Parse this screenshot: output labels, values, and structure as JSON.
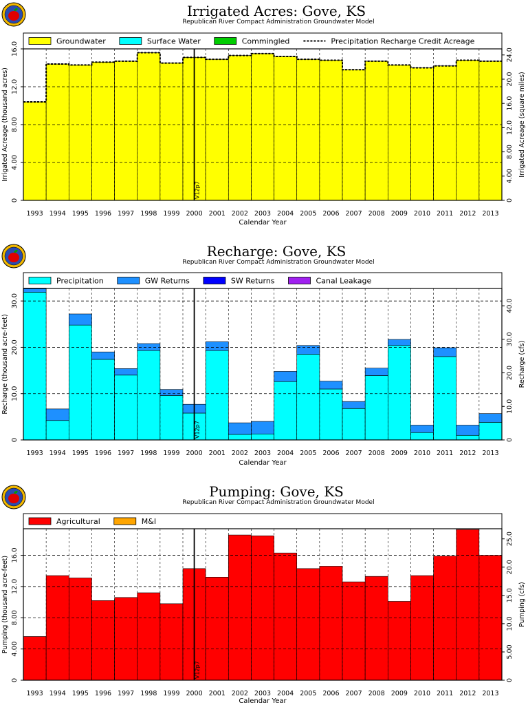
{
  "chart_data": [
    {
      "type": "bar",
      "title": "Irrigated Acres: Gove, KS",
      "subtitle": "Republican River Compact Administration Groundwater Model",
      "xlabel": "Calendar Year",
      "ylabel": "Irrigated Acreage (thousand acres)",
      "y2label": "Irrigated Acreage (square miles)",
      "categories": [
        "1993",
        "1994",
        "1995",
        "1996",
        "1997",
        "1998",
        "1999",
        "2000",
        "2001",
        "2002",
        "2003",
        "2004",
        "2005",
        "2006",
        "2007",
        "2008",
        "2009",
        "2010",
        "2011",
        "2012",
        "2013"
      ],
      "ylim": [
        0,
        16.0
      ],
      "yticks": [
        "0",
        "4.00",
        "8.00",
        "12.0",
        "16.0"
      ],
      "y2ticks": [
        "0",
        "4.00",
        "8.00",
        "12.0",
        "16.0",
        "20.0",
        "24.0"
      ],
      "y2_per_unit": 1.5625,
      "stacked": true,
      "series": [
        {
          "name": "Groundwater",
          "color": "#ffff00",
          "values": [
            10.4,
            14.4,
            14.3,
            14.6,
            14.7,
            15.6,
            14.5,
            15.1,
            14.9,
            15.3,
            15.5,
            15.2,
            14.9,
            14.8,
            13.8,
            14.7,
            14.3,
            14.0,
            14.2,
            14.8,
            14.7
          ]
        },
        {
          "name": "Surface Water",
          "color": "#00ffff",
          "values": [
            0,
            0,
            0,
            0,
            0,
            0,
            0,
            0,
            0,
            0,
            0,
            0,
            0,
            0,
            0,
            0,
            0,
            0,
            0,
            0,
            0
          ]
        },
        {
          "name": "Commingled",
          "color": "#00cc00",
          "values": [
            0,
            0,
            0,
            0,
            0,
            0,
            0,
            0,
            0,
            0,
            0,
            0,
            0,
            0,
            0,
            0,
            0,
            0,
            0,
            0,
            0
          ]
        }
      ],
      "line_series": {
        "name": "Precipitation Recharge Credit Acreage",
        "values": [
          10.4,
          14.4,
          14.3,
          14.6,
          14.7,
          15.6,
          14.5,
          15.1,
          14.9,
          15.3,
          15.5,
          15.2,
          14.9,
          14.8,
          13.8,
          14.7,
          14.3,
          14.0,
          14.2,
          14.8,
          14.7
        ]
      },
      "marker": {
        "label": "V12p7",
        "position": 7.5
      },
      "grid": true,
      "legend_position": "top"
    },
    {
      "type": "bar",
      "title": "Recharge: Gove, KS",
      "subtitle": "Republican River Compact Administration Groundwater Model",
      "xlabel": "Calendar Year",
      "ylabel": "Recharge (thousand acre-feet)",
      "y2label": "Recharge (cfs)",
      "categories": [
        "1993",
        "1994",
        "1995",
        "1996",
        "1997",
        "1998",
        "1999",
        "2000",
        "2001",
        "2002",
        "2003",
        "2004",
        "2005",
        "2006",
        "2007",
        "2008",
        "2009",
        "2010",
        "2011",
        "2012",
        "2013"
      ],
      "ylim": [
        0,
        32.7
      ],
      "yticks": [
        "0",
        "10.0",
        "20.0",
        "30.0"
      ],
      "y2ticks": [
        "0",
        "10.0",
        "20.0",
        "30.0",
        "40.0"
      ],
      "y2_per_unit": 1.381,
      "stacked": true,
      "series": [
        {
          "name": "Precipitation",
          "color": "#00ffff",
          "values": [
            31.9,
            4.2,
            24.8,
            17.4,
            14.0,
            19.3,
            9.6,
            5.8,
            19.3,
            1.2,
            1.3,
            12.6,
            18.5,
            11.0,
            6.8,
            13.9,
            20.4,
            1.6,
            18.0,
            1.0,
            3.8
          ]
        },
        {
          "name": "GW Returns",
          "color": "#1e90ff",
          "values": [
            0.9,
            2.5,
            2.4,
            1.6,
            1.4,
            1.5,
            1.3,
            1.9,
            1.9,
            2.5,
            2.7,
            2.2,
            1.9,
            1.7,
            1.5,
            1.6,
            1.3,
            1.6,
            1.9,
            2.2,
            1.9
          ]
        },
        {
          "name": "SW Returns",
          "color": "#0000ff",
          "values": [
            0,
            0,
            0,
            0,
            0,
            0,
            0,
            0,
            0,
            0,
            0,
            0,
            0,
            0,
            0,
            0,
            0,
            0,
            0,
            0,
            0
          ]
        },
        {
          "name": "Canal Leakage",
          "color": "#a020f0",
          "values": [
            0,
            0,
            0,
            0,
            0,
            0,
            0,
            0,
            0,
            0,
            0,
            0,
            0,
            0,
            0,
            0,
            0,
            0,
            0,
            0,
            0
          ]
        }
      ],
      "marker": {
        "label": "V12p7",
        "position": 7.5
      },
      "grid": true,
      "legend_position": "top"
    },
    {
      "type": "bar",
      "title": "Pumping: Gove, KS",
      "subtitle": "Republican River Compact Administration Groundwater Model",
      "xlabel": "Calendar Year",
      "ylabel": "Pumping (thousand acre-feet)",
      "y2label": "Pumping (cfs)",
      "categories": [
        "1993",
        "1994",
        "1995",
        "1996",
        "1997",
        "1998",
        "1999",
        "2000",
        "2001",
        "2002",
        "2003",
        "2004",
        "2005",
        "2006",
        "2007",
        "2008",
        "2009",
        "2010",
        "2011",
        "2012",
        "2013"
      ],
      "ylim": [
        0,
        19.4
      ],
      "yticks": [
        "0",
        "4.00",
        "8.00",
        "12.0",
        "16.0"
      ],
      "y2ticks": [
        "0",
        "5.00",
        "10.0",
        "15.0",
        "20.0",
        "25.0"
      ],
      "y2_per_unit": 1.381,
      "stacked": true,
      "series": [
        {
          "name": "Agricultural",
          "color": "#ff0000",
          "values": [
            5.6,
            13.4,
            13.1,
            10.2,
            10.6,
            11.2,
            9.8,
            14.3,
            13.2,
            18.6,
            18.5,
            16.3,
            14.3,
            14.6,
            12.6,
            13.3,
            10.1,
            13.4,
            15.9,
            19.3,
            16.0
          ]
        },
        {
          "name": "M&I",
          "color": "#ffa500",
          "values": [
            0,
            0,
            0,
            0,
            0,
            0,
            0,
            0,
            0,
            0,
            0,
            0,
            0,
            0,
            0,
            0,
            0,
            0,
            0,
            0,
            0
          ]
        }
      ],
      "marker": {
        "label": "V12p7",
        "position": 7.5
      },
      "grid": true,
      "legend_position": "top"
    }
  ]
}
